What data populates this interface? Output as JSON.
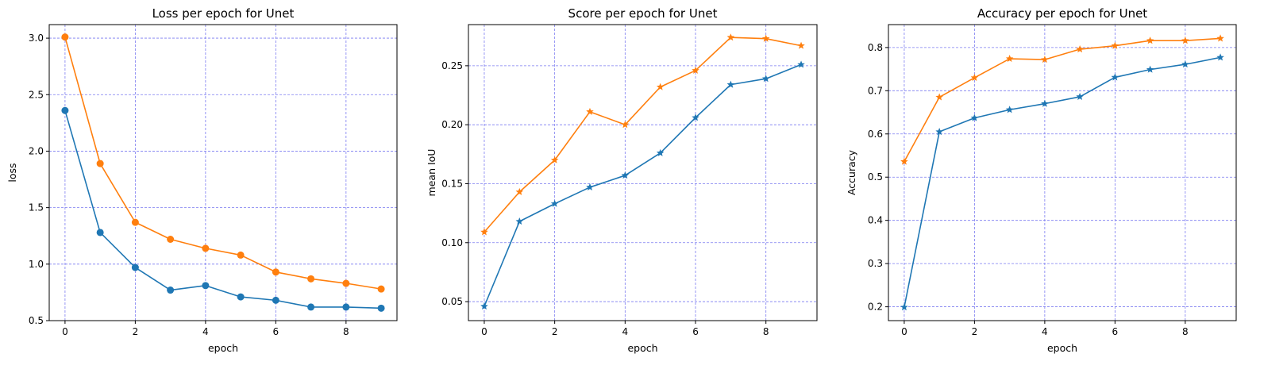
{
  "colors": {
    "series_blue": "#1f77b4",
    "series_orange": "#ff7f0e",
    "grid": "#7b7bf0",
    "axes": "#000000"
  },
  "chart_data": [
    {
      "type": "line",
      "title": "Loss per epoch for Unet",
      "xlabel": "epoch",
      "ylabel": "loss",
      "x": [
        0,
        1,
        2,
        3,
        4,
        5,
        6,
        7,
        8,
        9
      ],
      "xlim": [
        -0.45,
        9.45
      ],
      "ylim": [
        0.5,
        3.12
      ],
      "xticks": [
        0,
        2,
        4,
        6,
        8
      ],
      "yticks": [
        0.5,
        1.0,
        1.5,
        2.0,
        2.5,
        3.0
      ],
      "ytick_labels": [
        "0.5",
        "1.0",
        "1.5",
        "2.0",
        "2.5",
        "3.0"
      ],
      "grid": true,
      "series": [
        {
          "color": "#1f77b4",
          "marker": "circle",
          "values": [
            2.36,
            1.28,
            0.97,
            0.77,
            0.81,
            0.71,
            0.68,
            0.62,
            0.62,
            0.61
          ]
        },
        {
          "color": "#ff7f0e",
          "marker": "circle",
          "values": [
            3.01,
            1.89,
            1.37,
            1.22,
            1.14,
            1.08,
            0.93,
            0.87,
            0.83,
            0.78
          ]
        }
      ]
    },
    {
      "type": "line",
      "title": "Score per epoch for Unet",
      "xlabel": "epoch",
      "ylabel": "mean IoU",
      "x": [
        0,
        1,
        2,
        3,
        4,
        5,
        6,
        7,
        8,
        9
      ],
      "xlim": [
        -0.45,
        9.45
      ],
      "ylim": [
        0.0339,
        0.2849
      ],
      "xticks": [
        0,
        2,
        4,
        6,
        8
      ],
      "yticks": [
        0.05,
        0.1,
        0.15,
        0.2,
        0.25
      ],
      "ytick_labels": [
        "0.05",
        "0.10",
        "0.15",
        "0.20",
        "0.25"
      ],
      "grid": true,
      "series": [
        {
          "color": "#1f77b4",
          "marker": "star",
          "values": [
            0.046,
            0.118,
            0.133,
            0.147,
            0.157,
            0.176,
            0.206,
            0.234,
            0.239,
            0.251
          ]
        },
        {
          "color": "#ff7f0e",
          "marker": "star",
          "values": [
            0.109,
            0.143,
            0.17,
            0.211,
            0.2,
            0.232,
            0.246,
            0.274,
            0.273,
            0.267
          ]
        }
      ]
    },
    {
      "type": "line",
      "title": "Accuracy per epoch for Unet",
      "xlabel": "epoch",
      "ylabel": "Accuracy",
      "x": [
        0,
        1,
        2,
        3,
        4,
        5,
        6,
        7,
        8,
        9
      ],
      "xlim": [
        -0.45,
        9.45
      ],
      "ylim": [
        0.168,
        0.853
      ],
      "xticks": [
        0,
        2,
        4,
        6,
        8
      ],
      "yticks": [
        0.2,
        0.3,
        0.4,
        0.5,
        0.6,
        0.7,
        0.8
      ],
      "ytick_labels": [
        "0.2",
        "0.3",
        "0.4",
        "0.5",
        "0.6",
        "0.7",
        "0.8"
      ],
      "grid": true,
      "series": [
        {
          "color": "#1f77b4",
          "marker": "star",
          "values": [
            0.199,
            0.605,
            0.637,
            0.656,
            0.67,
            0.686,
            0.731,
            0.749,
            0.761,
            0.777
          ]
        },
        {
          "color": "#ff7f0e",
          "marker": "star",
          "values": [
            0.536,
            0.685,
            0.73,
            0.774,
            0.772,
            0.796,
            0.804,
            0.816,
            0.816,
            0.821
          ]
        }
      ]
    }
  ]
}
